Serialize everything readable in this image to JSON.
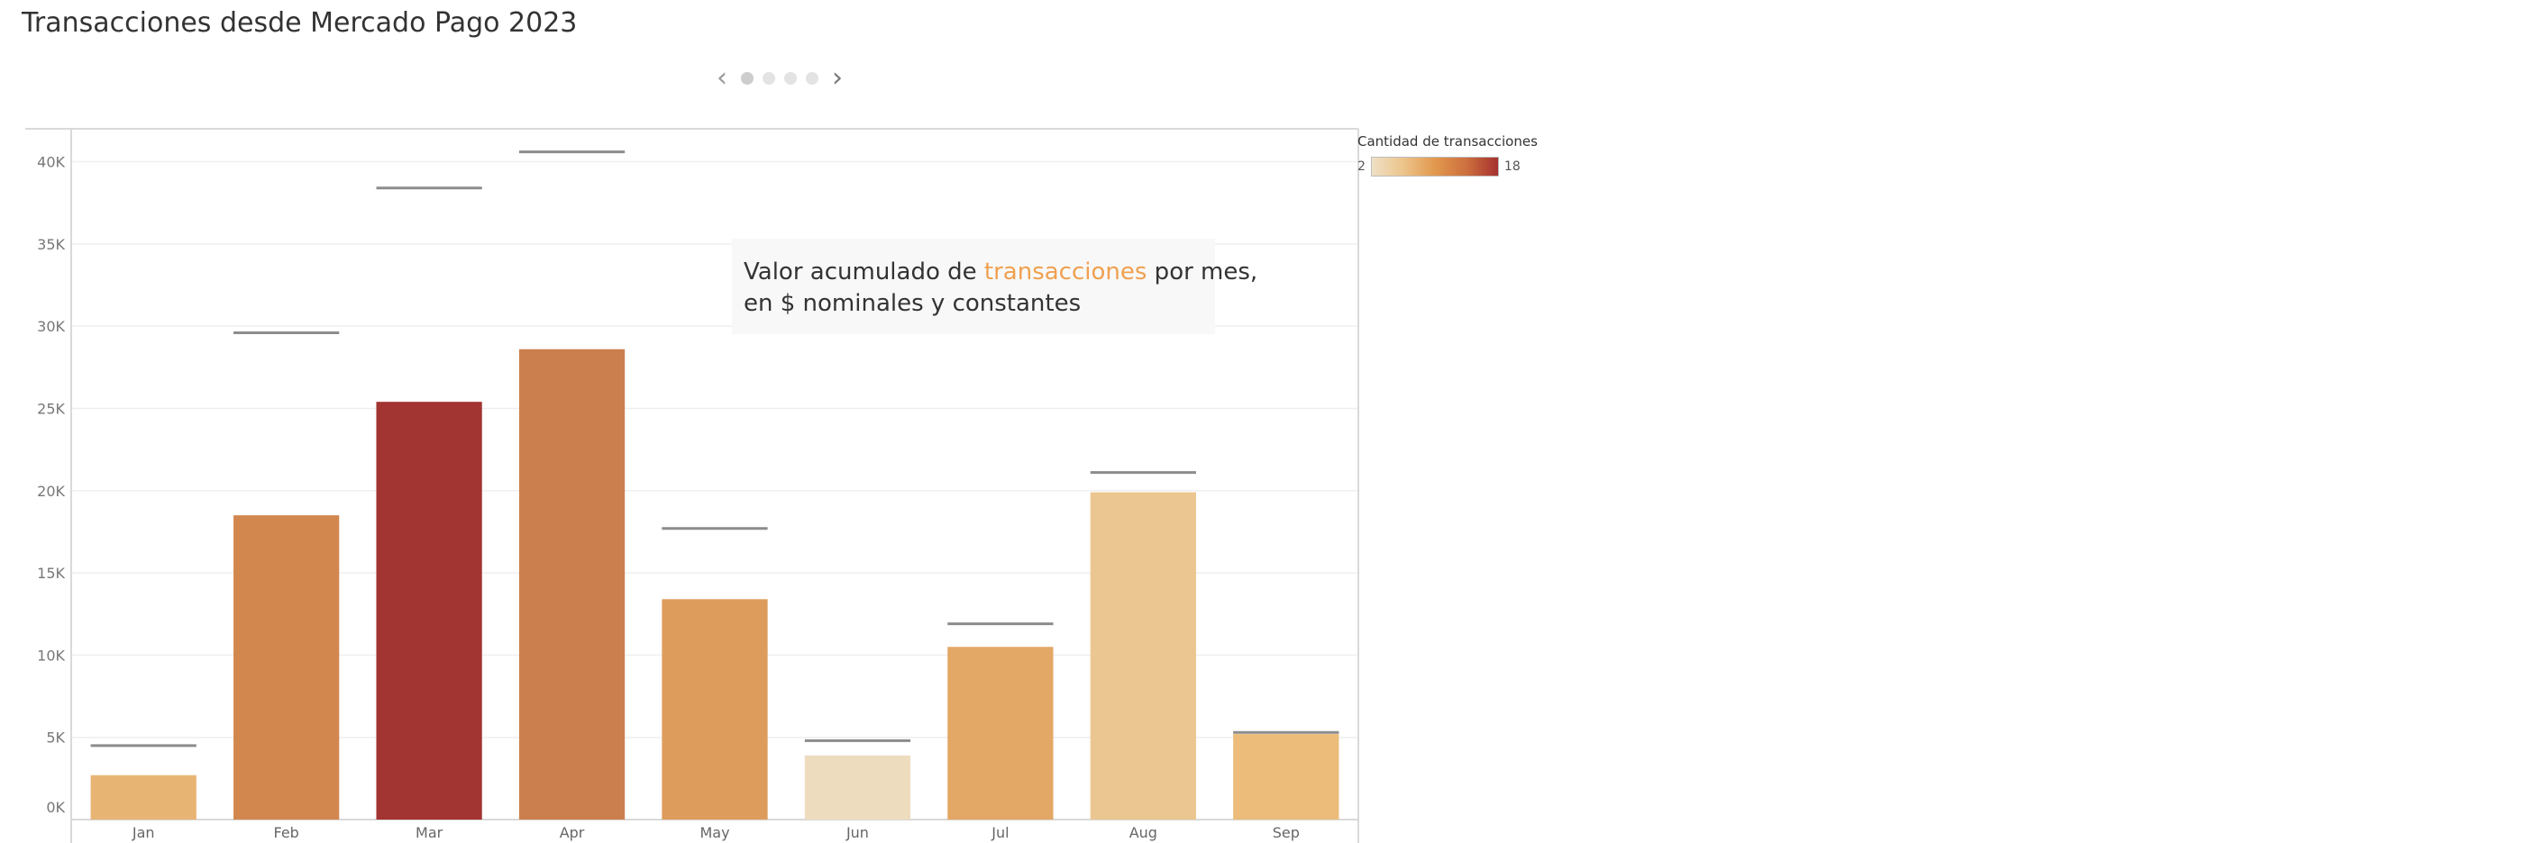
{
  "page": {
    "title": "Transacciones desde Mercado Pago 2023"
  },
  "pager": {
    "prev_glyph": "‹",
    "next_glyph": "›",
    "dot_count": 4,
    "active_index": 0
  },
  "legend": {
    "title": "Cantidad de transacciones",
    "min_label": "2",
    "max_label": "18",
    "min": 2,
    "max": 18,
    "colors": [
      "#efe0c6",
      "#ecc48a",
      "#e2984e",
      "#cd6f3e",
      "#a5312f"
    ]
  },
  "annotation": {
    "prefix": "Valor acumulado de ",
    "highlight": "transacciones",
    "suffix": " por mes,",
    "line2": "en $ nominales y constantes",
    "highlight_color": "#f0a050"
  },
  "chart_data": {
    "type": "bar",
    "categories": [
      "Jan",
      "Feb",
      "Mar",
      "Apr",
      "May",
      "Jun",
      "Jul",
      "Aug",
      "Sep"
    ],
    "series": [
      {
        "values": [
          2700,
          18500,
          25400,
          28600,
          13400,
          3900,
          10500,
          19900,
          5200
        ]
      },
      {
        "values": [
          4500,
          29600,
          38400,
          40600,
          17700,
          4800,
          11900,
          21100,
          5300
        ]
      }
    ],
    "bar_color_values": [
      7,
      10,
      18,
      12,
      9,
      2,
      8,
      4,
      6
    ],
    "bar_colors": [
      "#e8b474",
      "#d2874e",
      "#a23432",
      "#cc7f4e",
      "#de9c5c",
      "#eedcbe",
      "#e3a766",
      "#ecc690",
      "#ebbc7a"
    ],
    "reference_color": "#8c8c8c",
    "y_ticks": [
      0,
      5000,
      10000,
      15000,
      20000,
      25000,
      30000,
      35000,
      40000
    ],
    "y_tick_labels": [
      "0K",
      "5K",
      "10K",
      "15K",
      "20K",
      "25K",
      "30K",
      "35K",
      "40K"
    ],
    "ylim": [
      0,
      42000
    ],
    "grid": true,
    "legend_position": "right"
  }
}
